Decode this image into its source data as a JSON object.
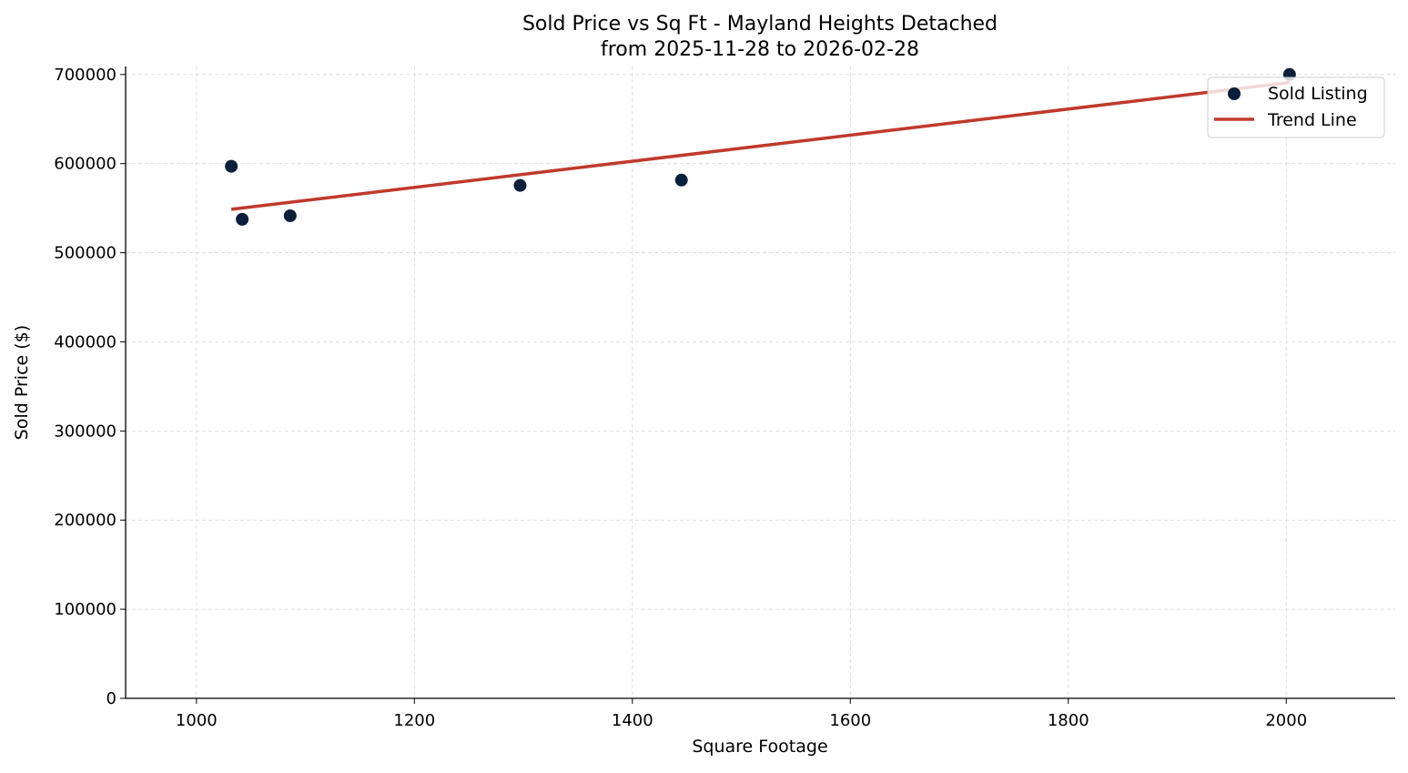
{
  "chart_data": {
    "type": "scatter",
    "title": "Sold Price vs Sq Ft - Mayland Heights Detached",
    "subtitle": "from 2025-11-28 to 2026-02-28",
    "xlabel": "Square Footage",
    "ylabel": "Sold Price ($)",
    "xlim": [
      935,
      2100
    ],
    "ylim": [
      0,
      709000
    ],
    "xticks": [
      1000,
      1200,
      1400,
      1600,
      1800,
      2000
    ],
    "yticks": [
      0,
      100000,
      200000,
      300000,
      400000,
      500000,
      600000,
      700000
    ],
    "grid": true,
    "legend_placement": "upper-right",
    "colors": {
      "points": "#0b1f3a",
      "trend": "#c0392b"
    },
    "series": [
      {
        "name": "Sold Listing",
        "type": "scatter",
        "x": [
          1032,
          1042,
          1086,
          1297,
          1445,
          2003
        ],
        "y": [
          597000,
          537500,
          541500,
          575500,
          581500,
          700000
        ]
      },
      {
        "name": "Trend Line",
        "type": "line",
        "x": [
          1032,
          2003
        ],
        "y": [
          548700,
          691000
        ]
      }
    ]
  }
}
